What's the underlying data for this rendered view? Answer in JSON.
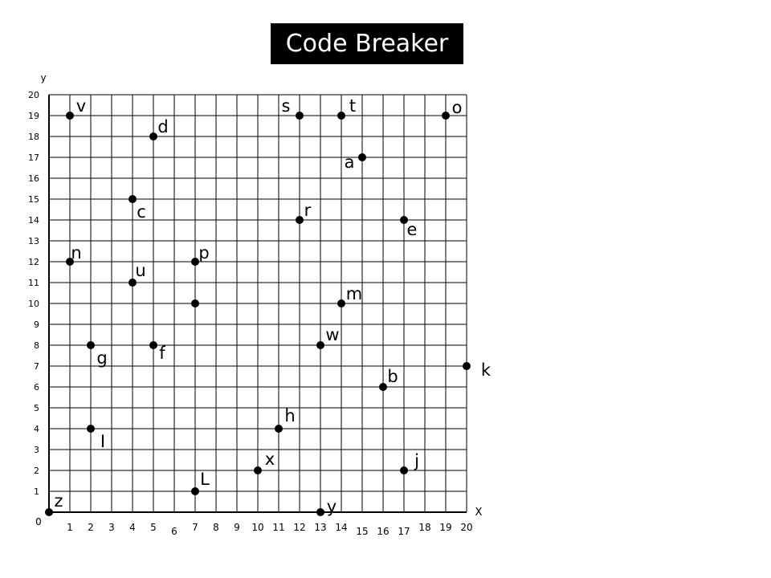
{
  "title": "Code Breaker",
  "axes": {
    "x_label": "X",
    "y_label": "y",
    "origin_label": "0",
    "x_ticks": [
      "1",
      "2",
      "3",
      "4",
      "5",
      "6",
      "7",
      "8",
      "9",
      "10",
      "11",
      "12",
      "13",
      "14",
      "15",
      "16",
      "17",
      "18",
      "19",
      "20"
    ],
    "y_ticks": [
      "1",
      "2",
      "3",
      "4",
      "5",
      "6",
      "7",
      "8",
      "9",
      "10",
      "11",
      "12",
      "13",
      "14",
      "15",
      "16",
      "17",
      "18",
      "19",
      "20"
    ]
  },
  "colors": {
    "ink": "#000000",
    "grid": "#000000",
    "background": "#ffffff"
  },
  "chart_data": {
    "type": "scatter",
    "xlim": [
      0,
      20
    ],
    "ylim": [
      0,
      20
    ],
    "grid": true,
    "points": [
      {
        "label": "v",
        "x": 1,
        "y": 19
      },
      {
        "label": "s",
        "x": 12,
        "y": 19
      },
      {
        "label": "t",
        "x": 14,
        "y": 19
      },
      {
        "label": "o",
        "x": 19,
        "y": 19
      },
      {
        "label": "d",
        "x": 5,
        "y": 18
      },
      {
        "label": "a",
        "x": 15,
        "y": 17
      },
      {
        "label": "c",
        "x": 4,
        "y": 15
      },
      {
        "label": "r",
        "x": 12,
        "y": 14
      },
      {
        "label": "e",
        "x": 17,
        "y": 14
      },
      {
        "label": "n",
        "x": 1,
        "y": 12
      },
      {
        "label": "p",
        "x": 7,
        "y": 12
      },
      {
        "label": "u",
        "x": 4,
        "y": 11
      },
      {
        "label": "",
        "x": 7,
        "y": 10
      },
      {
        "label": "m",
        "x": 14,
        "y": 10
      },
      {
        "label": "w",
        "x": 13,
        "y": 8
      },
      {
        "label": "g",
        "x": 2,
        "y": 8
      },
      {
        "label": "f",
        "x": 5,
        "y": 8
      },
      {
        "label": "k",
        "x": 20,
        "y": 7
      },
      {
        "label": "b",
        "x": 16,
        "y": 6
      },
      {
        "label": "h",
        "x": 11,
        "y": 4
      },
      {
        "label": "I",
        "x": 2,
        "y": 4
      },
      {
        "label": "x",
        "x": 10,
        "y": 2
      },
      {
        "label": "j",
        "x": 17,
        "y": 2
      },
      {
        "label": "L",
        "x": 7,
        "y": 1
      },
      {
        "label": "z",
        "x": 0,
        "y": 0
      },
      {
        "label": "y",
        "x": 13,
        "y": 0
      }
    ]
  }
}
